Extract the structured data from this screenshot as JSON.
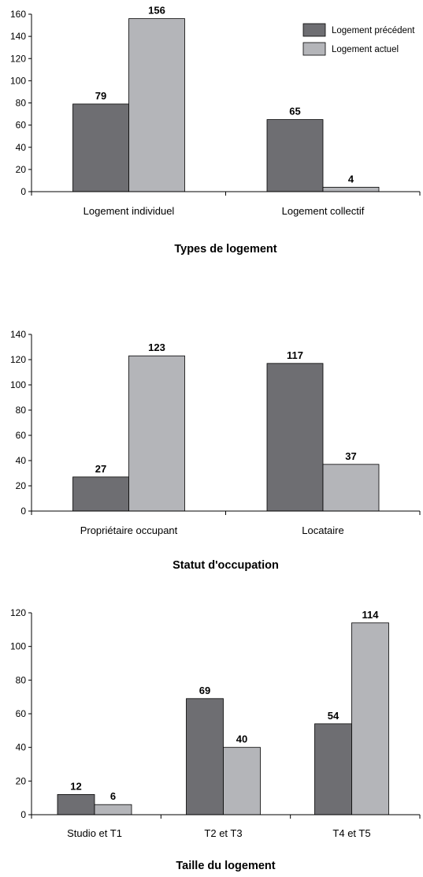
{
  "colors": {
    "series_dark": "#6e6e72",
    "series_light": "#b4b5b9",
    "axis": "#000000"
  },
  "chart_data": [
    {
      "type": "bar",
      "title": "Types de logement",
      "categories": [
        "Logement individuel",
        "Logement collectif"
      ],
      "series": [
        {
          "name": "Logement précédent",
          "values": [
            79,
            65
          ]
        },
        {
          "name": "Logement actuel",
          "values": [
            156,
            4
          ]
        }
      ],
      "ylim": [
        0,
        160
      ],
      "yticks": [
        0,
        20,
        40,
        60,
        80,
        100,
        120,
        140,
        160
      ],
      "legend": "top-right",
      "grid": false
    },
    {
      "type": "bar",
      "title": "Statut d'occupation",
      "categories": [
        "Propriétaire occupant",
        "Locataire"
      ],
      "series": [
        {
          "name": "Logement précédent",
          "values": [
            27,
            117
          ]
        },
        {
          "name": "Logement actuel",
          "values": [
            123,
            37
          ]
        }
      ],
      "ylim": [
        0,
        140
      ],
      "yticks": [
        0,
        20,
        40,
        60,
        80,
        100,
        120,
        140
      ],
      "legend": "none",
      "grid": false
    },
    {
      "type": "bar",
      "title": "Taille du logement",
      "categories": [
        "Studio et T1",
        "T2 et T3",
        "T4 et T5"
      ],
      "series": [
        {
          "name": "Logement précédent",
          "values": [
            12,
            69,
            54
          ]
        },
        {
          "name": "Logement actuel",
          "values": [
            6,
            40,
            114
          ]
        }
      ],
      "ylim": [
        0,
        120
      ],
      "yticks": [
        0,
        20,
        40,
        60,
        80,
        100,
        120
      ],
      "legend": "none",
      "grid": false
    }
  ]
}
